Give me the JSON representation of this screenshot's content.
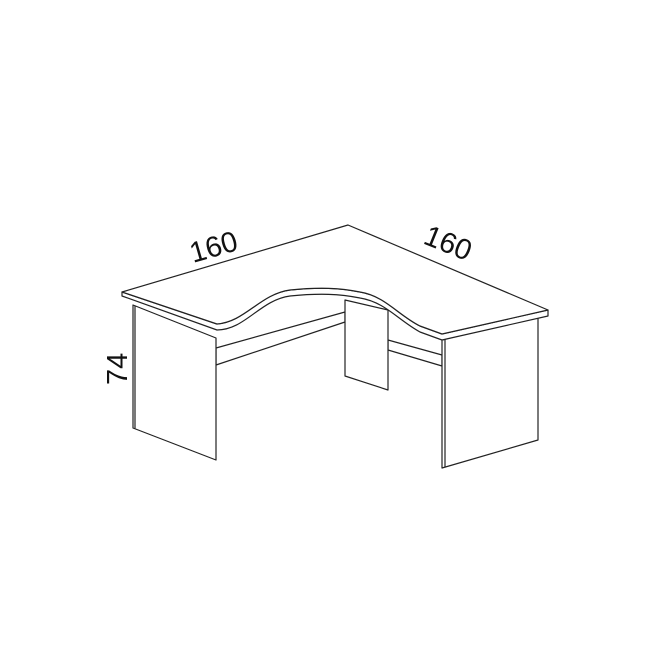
{
  "diagram": {
    "dimensions": {
      "left_width": "160",
      "right_width": "160",
      "height": "74"
    },
    "colors": {
      "line": "#222222",
      "background": "#ffffff"
    }
  }
}
